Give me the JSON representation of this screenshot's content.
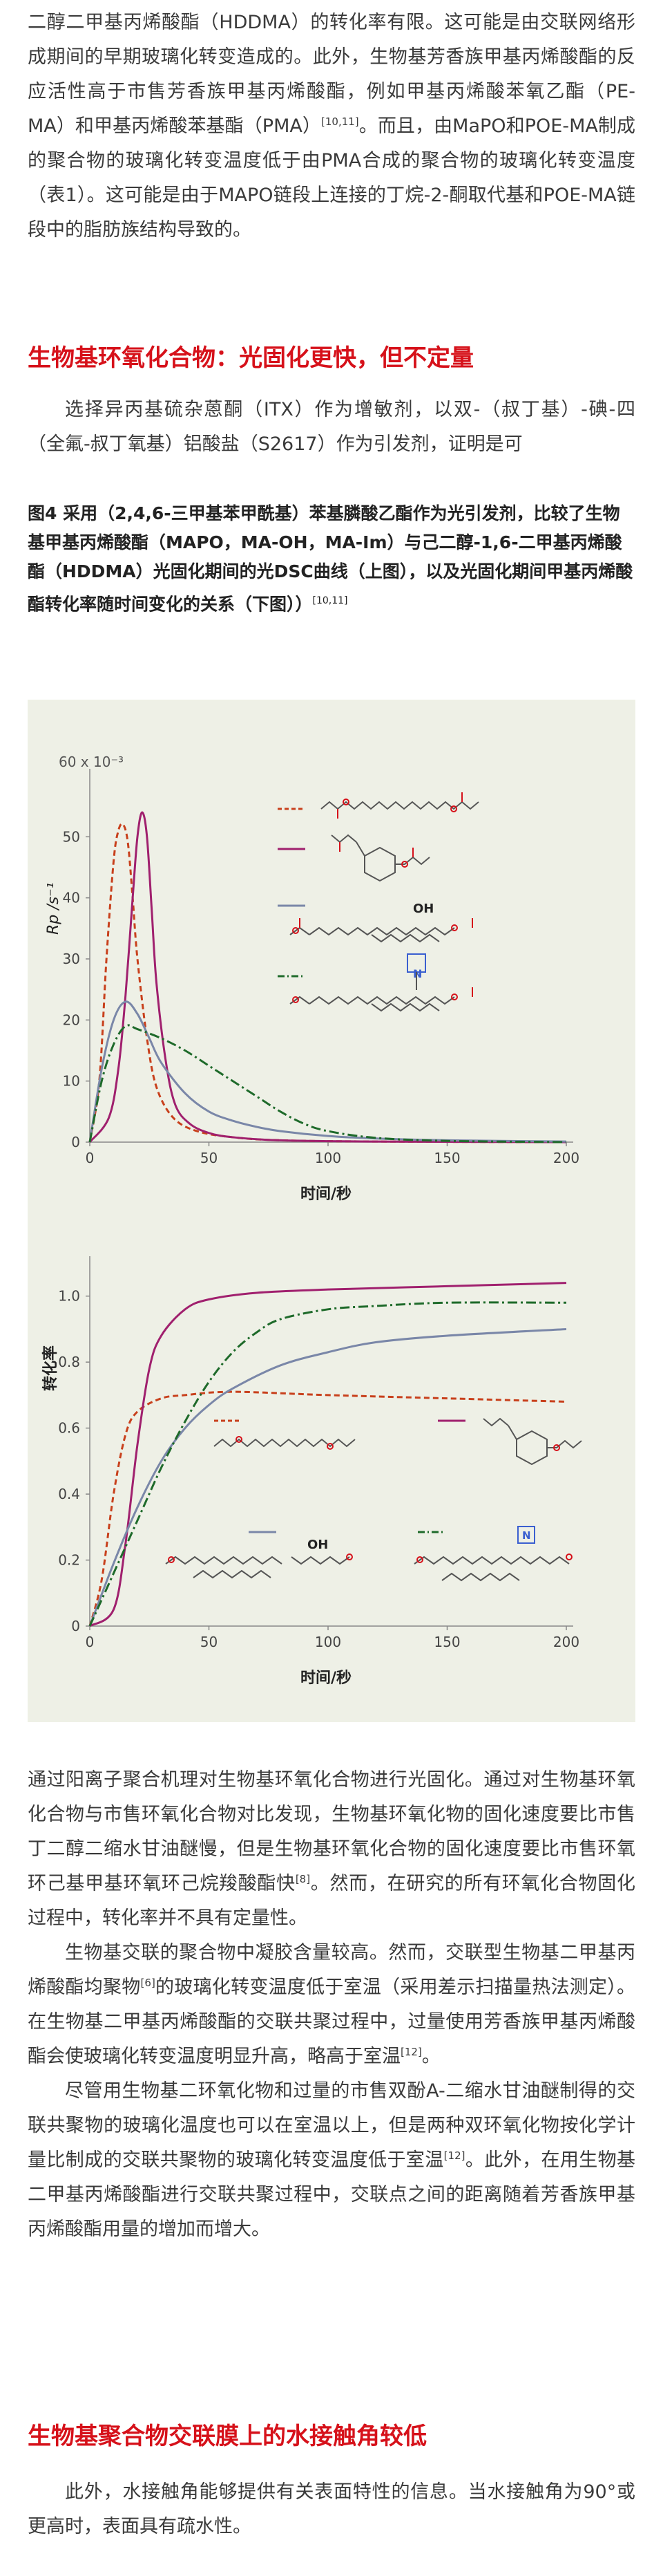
{
  "intro": {
    "p1_a": "二醇二甲基丙烯酸酯（HDDMA）的转化率有限。这可能是由交联网络形成期间的早期玻璃化转变造成的。此外，生物基芳香族甲基丙烯酸酯的反应活性高于市售芳香族甲基丙烯酸酯，例如甲基丙烯酸苯氧乙酯（PE-MA）和甲基丙烯酸苯基酯（PMA）",
    "p1_ref": "[10,11]",
    "p1_b": "。而且，由MaPO和POE-MA制成的聚合物的玻璃化转变温度低于由PMA合成的聚合物的玻璃化转变温度（表1）。这可能是由于MAPO链段上连接的丁烷-2-酮取代基和POE-MA链段中的脂肪族结构导致的。"
  },
  "section1": {
    "heading": "生物基环氧化合物：光固化更快，但不定量",
    "p1": "选择异丙基硫杂蒽酮（ITX）作为增敏剂，以双-（叔丁基）-碘-四（全氟-叔丁氧基）铝酸盐（S2617）作为引发剂，证明是可"
  },
  "figure": {
    "caption": "图4 采用（2,4,6-三甲基苯甲酰基）苯基膦酸乙酯作为光引发剂，比较了生物基甲基丙烯酸酯（MAPO，MA-OH，MA-Im）与己二醇-1,6-二甲基丙烯酸酯（HDDMA）光固化期间的光DSC曲线（上图），以及光固化期间甲基丙烯酸酯转化率随时间变化的关系（下图））",
    "caption_ref": "[10,11]",
    "colors": {
      "HDDMA": "#c8401c",
      "MAPO": "#a0206e",
      "MA-OH": "#7a87a8",
      "MA-Im": "#1e6a2a"
    }
  },
  "chart_data": [
    {
      "type": "line",
      "xlabel": "时间/秒",
      "ylabel": "Rp /s⁻¹",
      "y_multiplier_label": "60 x 10⁻³",
      "xlim": [
        0,
        200
      ],
      "ylim": [
        0,
        0.06
      ],
      "x_ticks": [
        0,
        50,
        100,
        150,
        200
      ],
      "y_ticks": [
        "0",
        "10",
        "20",
        "30",
        "40",
        "50"
      ],
      "series": [
        {
          "key": "HDDMA",
          "style": "dashed",
          "x": [
            0,
            4,
            7,
            10,
            12,
            14,
            16,
            18,
            20,
            24,
            28,
            35,
            45,
            60,
            80,
            120,
            200
          ],
          "y": [
            0,
            0.01,
            0.03,
            0.046,
            0.051,
            0.052,
            0.049,
            0.04,
            0.03,
            0.017,
            0.009,
            0.004,
            0.0018,
            0.0008,
            0.0003,
            0.0001,
            0
          ]
        },
        {
          "key": "MAPO",
          "style": "solid",
          "x": [
            0,
            8,
            12,
            15,
            18,
            20,
            22,
            24,
            26,
            28,
            32,
            36,
            42,
            50,
            60,
            80,
            120,
            200
          ],
          "y": [
            0,
            0.004,
            0.012,
            0.024,
            0.04,
            0.05,
            0.054,
            0.05,
            0.038,
            0.026,
            0.013,
            0.006,
            0.003,
            0.0015,
            0.0008,
            0.0003,
            0.0001,
            0
          ]
        },
        {
          "key": "MA-OH",
          "style": "solid",
          "x": [
            0,
            5,
            10,
            15,
            20,
            25,
            30,
            40,
            50,
            60,
            70,
            80,
            100,
            120,
            150,
            200
          ],
          "y": [
            0,
            0.012,
            0.02,
            0.023,
            0.021,
            0.017,
            0.013,
            0.008,
            0.005,
            0.0035,
            0.0025,
            0.0018,
            0.001,
            0.0006,
            0.0003,
            0.0001
          ]
        },
        {
          "key": "MA-Im",
          "style": "dashdot",
          "x": [
            0,
            5,
            10,
            15,
            20,
            30,
            40,
            50,
            60,
            70,
            80,
            90,
            100,
            120,
            150,
            200
          ],
          "y": [
            0,
            0.01,
            0.016,
            0.019,
            0.0185,
            0.017,
            0.015,
            0.0125,
            0.01,
            0.0075,
            0.005,
            0.003,
            0.0018,
            0.0007,
            0.0002,
            0
          ]
        }
      ]
    },
    {
      "type": "line",
      "xlabel": "时间/秒",
      "ylabel": "转化率",
      "xlim": [
        0,
        200
      ],
      "ylim": [
        0,
        1.1
      ],
      "x_ticks": [
        0,
        50,
        100,
        150,
        200
      ],
      "y_ticks": [
        "0",
        "0.2",
        "0.4",
        "0.6",
        "0.8",
        "1.0"
      ],
      "series": [
        {
          "key": "HDDMA",
          "style": "dashed",
          "x": [
            0,
            5,
            10,
            15,
            20,
            30,
            40,
            60,
            100,
            150,
            200
          ],
          "y": [
            0,
            0.14,
            0.4,
            0.58,
            0.65,
            0.69,
            0.7,
            0.71,
            0.7,
            0.69,
            0.68
          ]
        },
        {
          "key": "MAPO",
          "style": "solid",
          "x": [
            0,
            10,
            15,
            20,
            25,
            30,
            40,
            50,
            70,
            100,
            150,
            200
          ],
          "y": [
            0,
            0.05,
            0.25,
            0.55,
            0.78,
            0.88,
            0.96,
            0.99,
            1.01,
            1.02,
            1.03,
            1.04
          ]
        },
        {
          "key": "MA-OH",
          "style": "solid",
          "x": [
            0,
            10,
            20,
            30,
            40,
            50,
            60,
            80,
            100,
            120,
            150,
            200
          ],
          "y": [
            0,
            0.19,
            0.36,
            0.5,
            0.6,
            0.67,
            0.72,
            0.79,
            0.83,
            0.86,
            0.88,
            0.9
          ]
        },
        {
          "key": "MA-Im",
          "style": "dashdot",
          "x": [
            0,
            10,
            20,
            30,
            40,
            50,
            60,
            70,
            80,
            100,
            120,
            150,
            200
          ],
          "y": [
            0,
            0.16,
            0.32,
            0.48,
            0.62,
            0.74,
            0.83,
            0.89,
            0.93,
            0.96,
            0.97,
            0.98,
            0.98
          ]
        }
      ]
    }
  ],
  "section1_cont": {
    "p1": "通过阳离子聚合机理对生物基环氧化合物进行光固化。通过对生物基环氧化合物与市售环氧化合物对比发现，生物基环氧化物的固化速度要比市售丁二醇二缩水甘油醚慢，但是生物基环氧化合物的固化速度要比市售环氧环己基甲基环氧环己烷羧酸酯快",
    "p1_ref": "[8]",
    "p1_b": "。然而，在研究的所有环氧化合物固化过程中，转化率并不具有定量性。",
    "p2_a": "生物基交联的聚合物中凝胶含量较高。然而，交联型生物基二甲基丙烯酸酯均聚物",
    "p2_ref": "[6]",
    "p2_b": "的玻璃化转变温度低于室温（采用差示扫描量热法测定）。在生物基二甲基丙烯酸酯的交联共聚过程中，过量使用芳香族甲基丙烯酸酯会使玻璃化转变温度明显升高，略高于室温",
    "p2_ref2": "[12]",
    "p2_c": "。",
    "p3_a": "尽管用生物基二环氧化物和过量的市售双酚A-二缩水甘油醚制得的交联共聚物的玻璃化温度也可以在室温以上，但是两种双环氧化物按化学计量比制成的交联共聚物的玻璃化转变温度低于室温",
    "p3_ref": "[12]",
    "p3_b": "。此外，在用生物基二甲基丙烯酸酯进行交联共聚过程中，交联点之间的距离随着芳香族甲基丙烯酸酯用量的增加而增大。"
  },
  "section2": {
    "heading": "生物基聚合物交联膜上的水接触角较低",
    "p1": "此外，水接触角能够提供有关表面特性的信息。当水接触角为90°或更高时，表面具有疏水性。"
  }
}
